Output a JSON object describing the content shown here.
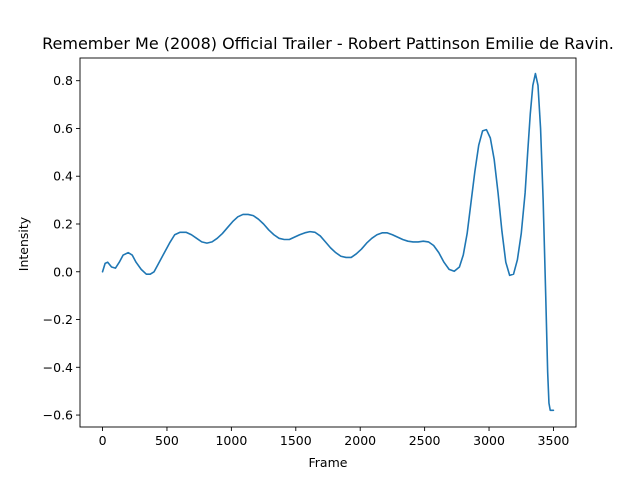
{
  "chart_data": {
    "type": "line",
    "title": "Remember Me (2008) Official Trailer - Robert Pattinson Emilie de Ravin.",
    "xlabel": "Frame",
    "ylabel": "Intensity",
    "xlim": [
      -175,
      3675
    ],
    "ylim": [
      -0.65,
      0.895
    ],
    "xticks": [
      0,
      500,
      1000,
      1500,
      2000,
      2500,
      3000,
      3500
    ],
    "yticks": [
      -0.6,
      -0.4,
      -0.2,
      0.0,
      0.2,
      0.4,
      0.6,
      0.8
    ],
    "xtick_labels": [
      "0",
      "500",
      "1000",
      "1500",
      "2000",
      "2500",
      "3000",
      "3500"
    ],
    "ytick_labels": [
      "−0.6",
      "−0.4",
      "−0.2",
      "0.0",
      "0.2",
      "0.4",
      "0.6",
      "0.8"
    ],
    "grid": false,
    "legend": "none",
    "series": [
      {
        "color": "#1f77b4",
        "x": [
          0,
          20,
          40,
          70,
          100,
          130,
          160,
          200,
          230,
          260,
          300,
          340,
          370,
          400,
          430,
          470,
          520,
          560,
          600,
          650,
          690,
          730,
          770,
          810,
          850,
          890,
          930,
          970,
          1010,
          1050,
          1090,
          1130,
          1170,
          1210,
          1250,
          1290,
          1330,
          1370,
          1410,
          1450,
          1490,
          1530,
          1570,
          1610,
          1650,
          1690,
          1730,
          1770,
          1810,
          1850,
          1890,
          1930,
          1970,
          2010,
          2050,
          2090,
          2130,
          2170,
          2210,
          2250,
          2290,
          2330,
          2370,
          2410,
          2450,
          2490,
          2530,
          2570,
          2610,
          2650,
          2690,
          2730,
          2770,
          2800,
          2830,
          2860,
          2890,
          2920,
          2950,
          2980,
          3010,
          3040,
          3070,
          3100,
          3130,
          3160,
          3190,
          3220,
          3250,
          3280,
          3300,
          3320,
          3340,
          3360,
          3380,
          3400,
          3420,
          3440,
          3455,
          3465,
          3475,
          3485,
          3495,
          3500
        ],
        "y": [
          0.0,
          0.035,
          0.04,
          0.02,
          0.015,
          0.04,
          0.07,
          0.08,
          0.07,
          0.04,
          0.01,
          -0.01,
          -0.01,
          0.0,
          0.03,
          0.07,
          0.12,
          0.155,
          0.165,
          0.165,
          0.155,
          0.14,
          0.125,
          0.12,
          0.125,
          0.14,
          0.16,
          0.185,
          0.21,
          0.23,
          0.24,
          0.24,
          0.235,
          0.22,
          0.2,
          0.175,
          0.155,
          0.14,
          0.135,
          0.135,
          0.145,
          0.155,
          0.163,
          0.168,
          0.165,
          0.15,
          0.125,
          0.1,
          0.08,
          0.065,
          0.06,
          0.06,
          0.075,
          0.095,
          0.12,
          0.14,
          0.155,
          0.163,
          0.163,
          0.155,
          0.145,
          0.135,
          0.128,
          0.125,
          0.125,
          0.128,
          0.125,
          0.11,
          0.08,
          0.04,
          0.01,
          0.002,
          0.02,
          0.07,
          0.16,
          0.29,
          0.42,
          0.53,
          0.59,
          0.595,
          0.56,
          0.47,
          0.33,
          0.17,
          0.04,
          -0.015,
          -0.01,
          0.05,
          0.16,
          0.33,
          0.5,
          0.66,
          0.78,
          0.83,
          0.78,
          0.6,
          0.3,
          -0.1,
          -0.42,
          -0.55,
          -0.58,
          -0.58,
          -0.58,
          -0.58
        ]
      }
    ]
  }
}
